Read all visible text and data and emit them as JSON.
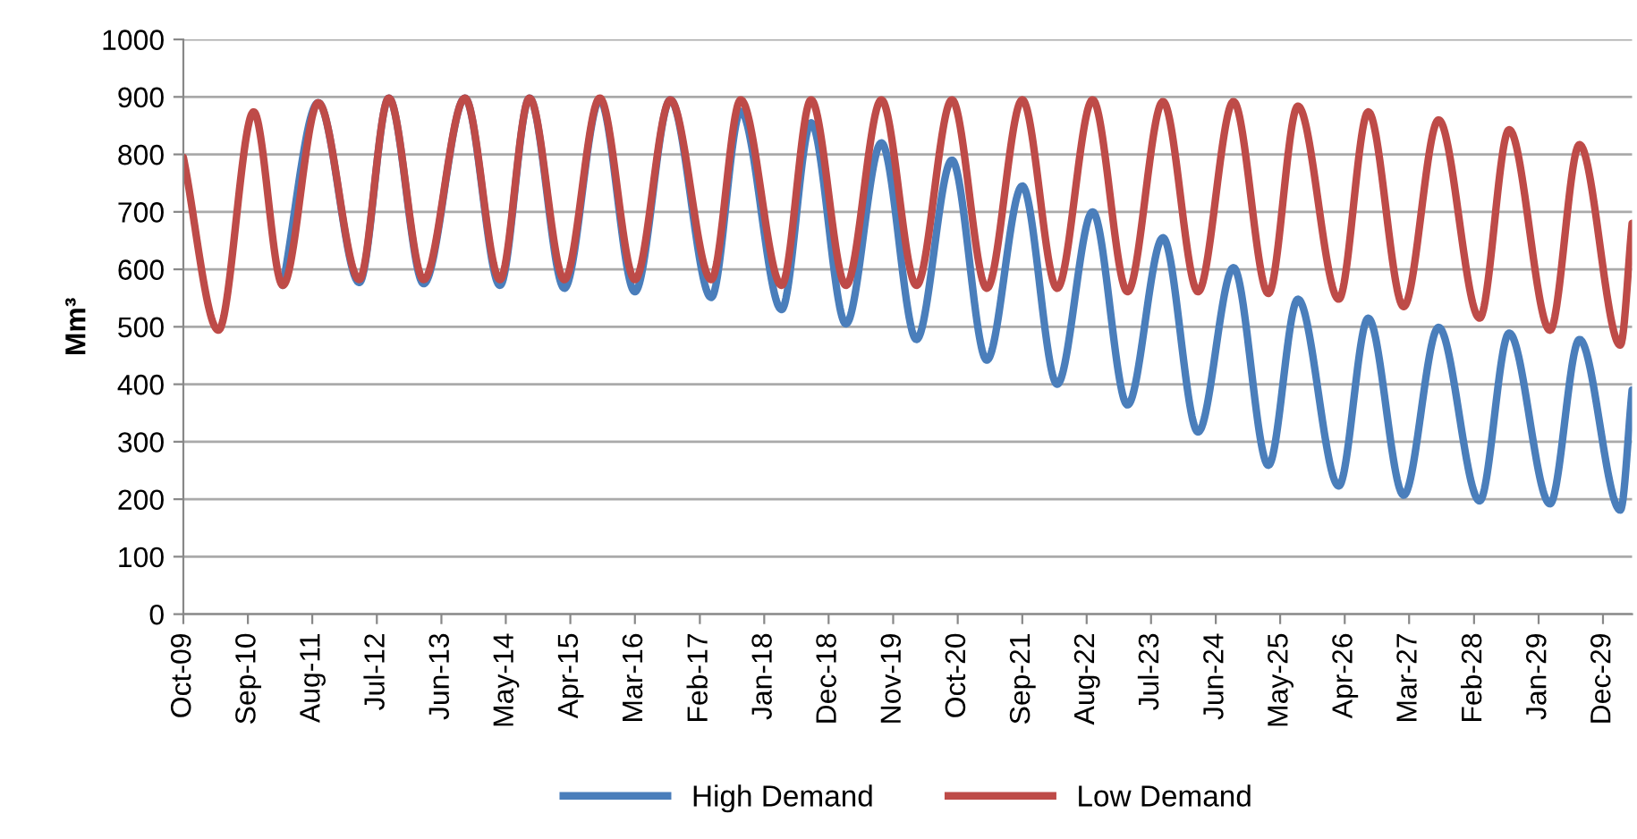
{
  "chart_data": {
    "type": "line",
    "ylabel": "Mm³",
    "ylim": [
      0,
      1000
    ],
    "yticks": [
      0,
      100,
      200,
      300,
      400,
      500,
      600,
      700,
      800,
      900,
      1000
    ],
    "xlim": [
      "2009-10",
      "2030-05"
    ],
    "xticks": [
      {
        "value": "2009-10",
        "label": "Oct-09"
      },
      {
        "value": "2010-09",
        "label": "Sep-10"
      },
      {
        "value": "2011-08",
        "label": "Aug-11"
      },
      {
        "value": "2012-07",
        "label": "Jul-12"
      },
      {
        "value": "2013-06",
        "label": "Jun-13"
      },
      {
        "value": "2014-05",
        "label": "May-14"
      },
      {
        "value": "2015-04",
        "label": "Apr-15"
      },
      {
        "value": "2016-03",
        "label": "Mar-16"
      },
      {
        "value": "2017-02",
        "label": "Feb-17"
      },
      {
        "value": "2018-01",
        "label": "Jan-18"
      },
      {
        "value": "2018-12",
        "label": "Dec-18"
      },
      {
        "value": "2019-11",
        "label": "Nov-19"
      },
      {
        "value": "2020-10",
        "label": "Oct-20"
      },
      {
        "value": "2021-09",
        "label": "Sep-21"
      },
      {
        "value": "2022-08",
        "label": "Aug-22"
      },
      {
        "value": "2023-07",
        "label": "Jul-23"
      },
      {
        "value": "2024-06",
        "label": "Jun-24"
      },
      {
        "value": "2025-05",
        "label": "May-25"
      },
      {
        "value": "2026-04",
        "label": "Apr-26"
      },
      {
        "value": "2027-03",
        "label": "Mar-27"
      },
      {
        "value": "2028-02",
        "label": "Feb-28"
      },
      {
        "value": "2029-01",
        "label": "Jan-29"
      },
      {
        "value": "2029-12",
        "label": "Dec-29"
      }
    ],
    "x": [
      "2009-10",
      "2010-04",
      "2010-10",
      "2011-03",
      "2011-09",
      "2012-04",
      "2012-09",
      "2013-03",
      "2013-10",
      "2014-04",
      "2014-09",
      "2015-03",
      "2015-09",
      "2016-03",
      "2016-09",
      "2017-04",
      "2017-09",
      "2018-04",
      "2018-09",
      "2019-03",
      "2019-09",
      "2020-03",
      "2020-09",
      "2021-03",
      "2021-09",
      "2022-03",
      "2022-09",
      "2023-03",
      "2023-09",
      "2024-03",
      "2024-09",
      "2025-03",
      "2025-08",
      "2026-03",
      "2026-08",
      "2027-02",
      "2027-08",
      "2028-03",
      "2028-08",
      "2029-03",
      "2029-08",
      "2030-03",
      "2030-05"
    ],
    "series": [
      {
        "name": "High Demand",
        "color": "#4a7ebb",
        "values": [
          null,
          null,
          null,
          572,
          890,
          577,
          898,
          575,
          898,
          572,
          898,
          567,
          895,
          561,
          895,
          551,
          875,
          530,
          855,
          505,
          820,
          478,
          790,
          442,
          745,
          400,
          700,
          364,
          655,
          317,
          603,
          259,
          548,
          223,
          515,
          207,
          499,
          197,
          489,
          192,
          478,
          181,
          390
        ]
      },
      {
        "name": "Low Demand",
        "color": "#be4b48",
        "values": [
          795,
          494,
          874,
          572,
          890,
          582,
          898,
          582,
          898,
          582,
          898,
          582,
          898,
          582,
          895,
          582,
          895,
          572,
          895,
          572,
          895,
          572,
          895,
          567,
          895,
          567,
          895,
          561,
          892,
          561,
          892,
          558,
          884,
          548,
          874,
          535,
          860,
          515,
          843,
          494,
          817,
          468,
          680
        ]
      }
    ],
    "grid": "y",
    "legend": "bottom",
    "marker": "none",
    "line_style": "solid"
  }
}
